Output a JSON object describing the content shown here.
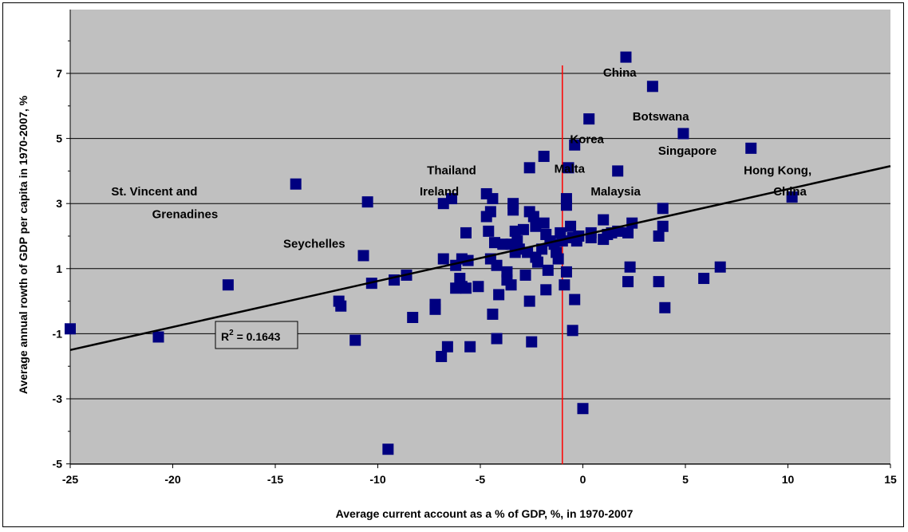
{
  "chart_data": {
    "type": "scatter",
    "xlabel": "Average current account as a % of GDP, %, in 1970-2007",
    "ylabel": "Average annual rowth of GDP per capita in 1970-2007, %",
    "xlim": [
      -25,
      15
    ],
    "ylim": [
      -5,
      8
    ],
    "x_ticks": [
      -25,
      -20,
      -15,
      -10,
      -5,
      0,
      5,
      10,
      15
    ],
    "x_tick_labels": [
      "-25",
      "-20",
      "-15",
      "-10",
      "-5",
      "0",
      "5",
      "10",
      "15"
    ],
    "y_ticks": [
      -5,
      -3,
      -1,
      1,
      3,
      5,
      7
    ],
    "y_tick_labels": [
      "-5",
      "-3",
      "-1",
      "1",
      "3",
      "5",
      "7"
    ],
    "grid": "horizontal",
    "plot_background": "#c0c0c0",
    "marker_color": "#000080",
    "trendline": {
      "x0": -25,
      "y0": -1.5,
      "x1": 15,
      "y1": 4.15,
      "color": "#000000"
    },
    "vertical_line": {
      "x": -1.0,
      "color": "#ff0000"
    },
    "r_squared_label": {
      "prefix": "R",
      "sup": "2",
      "suffix": " = 0.1643"
    },
    "annotations": [
      {
        "text": "China",
        "x": 1.8,
        "y": 6.9
      },
      {
        "text": "Botswana",
        "x": 3.8,
        "y": 5.55
      },
      {
        "text": "Korea",
        "x": 0.2,
        "y": 4.85
      },
      {
        "text": "Singapore",
        "x": 5.1,
        "y": 4.5
      },
      {
        "text": "Thailand",
        "x": -6.4,
        "y": 3.9
      },
      {
        "text": "Malta",
        "x": -0.65,
        "y": 3.95
      },
      {
        "text": "Hong Kong,",
        "x": 9.5,
        "y": 3.9
      },
      {
        "text": "China",
        "x": 10.1,
        "y": 3.25
      },
      {
        "text": "Ireland",
        "x": -7.0,
        "y": 3.25
      },
      {
        "text": "Malaysia",
        "x": 1.6,
        "y": 3.25
      },
      {
        "text": "St. Vincent and",
        "x": -20.9,
        "y": 3.25
      },
      {
        "text": "Grenadines",
        "x": -19.4,
        "y": 2.55
      },
      {
        "text": "Seychelles",
        "x": -13.1,
        "y": 1.65
      }
    ],
    "series": [
      {
        "points": [
          [
            -25.0,
            -0.85
          ],
          [
            -20.7,
            -1.1
          ],
          [
            -17.3,
            0.5
          ],
          [
            -14.0,
            3.6
          ],
          [
            -11.9,
            0.0
          ],
          [
            -11.8,
            -0.15
          ],
          [
            -11.1,
            -1.2
          ],
          [
            -10.7,
            1.4
          ],
          [
            -10.5,
            3.05
          ],
          [
            -10.3,
            0.55
          ],
          [
            -9.5,
            -4.55
          ],
          [
            -9.2,
            0.65
          ],
          [
            -8.6,
            0.8
          ],
          [
            -8.3,
            -0.5
          ],
          [
            -7.2,
            -0.1
          ],
          [
            -7.2,
            -0.25
          ],
          [
            -6.9,
            -1.7
          ],
          [
            -6.8,
            3.0
          ],
          [
            -6.8,
            1.3
          ],
          [
            -6.6,
            -1.4
          ],
          [
            -6.4,
            3.15
          ],
          [
            -6.2,
            1.1
          ],
          [
            -6.2,
            0.4
          ],
          [
            -6.0,
            0.7
          ],
          [
            -5.9,
            1.3
          ],
          [
            -5.9,
            0.45
          ],
          [
            -5.7,
            0.4
          ],
          [
            -5.7,
            2.1
          ],
          [
            -5.6,
            1.25
          ],
          [
            -5.5,
            -1.4
          ],
          [
            -5.1,
            0.45
          ],
          [
            -4.7,
            3.3
          ],
          [
            -4.7,
            2.6
          ],
          [
            -4.6,
            2.15
          ],
          [
            -4.5,
            2.75
          ],
          [
            -4.5,
            1.3
          ],
          [
            -4.4,
            3.15
          ],
          [
            -4.4,
            -0.4
          ],
          [
            -4.3,
            1.8
          ],
          [
            -4.2,
            1.1
          ],
          [
            -4.2,
            -1.15
          ],
          [
            -4.1,
            0.2
          ],
          [
            -3.9,
            1.75
          ],
          [
            -3.7,
            0.9
          ],
          [
            -3.7,
            0.65
          ],
          [
            -3.5,
            1.75
          ],
          [
            -3.5,
            0.5
          ],
          [
            -3.4,
            3.0
          ],
          [
            -3.4,
            2.8
          ],
          [
            -3.3,
            2.15
          ],
          [
            -3.3,
            1.5
          ],
          [
            -3.2,
            1.85
          ],
          [
            -3.1,
            1.6
          ],
          [
            -2.9,
            2.2
          ],
          [
            -2.8,
            0.8
          ],
          [
            -2.7,
            1.5
          ],
          [
            -2.6,
            4.1
          ],
          [
            -2.6,
            2.75
          ],
          [
            -2.6,
            0.0
          ],
          [
            -2.5,
            -1.25
          ],
          [
            -2.4,
            2.6
          ],
          [
            -2.3,
            1.35
          ],
          [
            -2.3,
            2.3
          ],
          [
            -2.2,
            1.2
          ],
          [
            -2.0,
            1.6
          ],
          [
            -1.9,
            4.45
          ],
          [
            -1.9,
            2.4
          ],
          [
            -1.8,
            2.05
          ],
          [
            -1.8,
            0.35
          ],
          [
            -1.7,
            0.95
          ],
          [
            -1.6,
            1.85
          ],
          [
            -1.4,
            1.75
          ],
          [
            -1.3,
            1.5
          ],
          [
            -1.2,
            1.3
          ],
          [
            -1.1,
            2.1
          ],
          [
            -1.0,
            1.85
          ],
          [
            -0.9,
            0.5
          ],
          [
            -0.8,
            3.15
          ],
          [
            -0.8,
            2.95
          ],
          [
            -0.8,
            0.9
          ],
          [
            -0.7,
            4.1
          ],
          [
            -0.6,
            2.3
          ],
          [
            -0.5,
            -0.9
          ],
          [
            -0.5,
            1.95
          ],
          [
            -0.4,
            4.8
          ],
          [
            -0.4,
            0.05
          ],
          [
            -0.3,
            1.85
          ],
          [
            -0.2,
            2.0
          ],
          [
            0.0,
            -3.3
          ],
          [
            0.3,
            5.6
          ],
          [
            0.4,
            2.1
          ],
          [
            0.4,
            1.95
          ],
          [
            1.0,
            2.5
          ],
          [
            1.0,
            1.9
          ],
          [
            1.2,
            2.05
          ],
          [
            1.4,
            2.1
          ],
          [
            1.7,
            4.0
          ],
          [
            1.7,
            2.15
          ],
          [
            2.1,
            7.5
          ],
          [
            2.2,
            0.6
          ],
          [
            2.2,
            2.1
          ],
          [
            2.3,
            1.05
          ],
          [
            2.4,
            2.4
          ],
          [
            3.4,
            6.6
          ],
          [
            3.7,
            2.0
          ],
          [
            3.7,
            0.6
          ],
          [
            3.9,
            2.85
          ],
          [
            3.9,
            2.3
          ],
          [
            4.0,
            -0.2
          ],
          [
            4.9,
            5.15
          ],
          [
            5.9,
            0.7
          ],
          [
            6.7,
            1.05
          ],
          [
            8.2,
            4.7
          ],
          [
            10.2,
            3.2
          ]
        ]
      }
    ]
  }
}
